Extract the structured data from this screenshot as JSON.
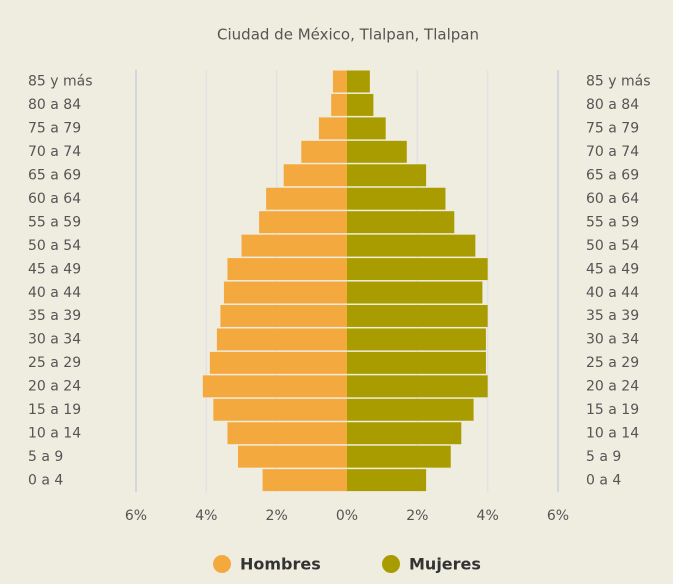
{
  "chart_data": {
    "type": "pyramid",
    "title": "Ciudad de México, Tlalpan, Tlalpan",
    "categories": [
      "85 y más",
      "80 a 84",
      "75 a 79",
      "70 a 74",
      "65 a 69",
      "60 a 64",
      "55 a 59",
      "50 a 54",
      "45 a 49",
      "40 a 44",
      "35 a 39",
      "30 a 34",
      "25 a 29",
      "20 a 24",
      "15 a 19",
      "10 a 14",
      "5 a 9",
      "0 a 4"
    ],
    "series": [
      {
        "name": "Hombres",
        "color": "#f4a93f",
        "values": [
          -0.4,
          -0.45,
          -0.8,
          -1.3,
          -1.8,
          -2.3,
          -2.5,
          -3.0,
          -3.4,
          -3.5,
          -3.6,
          -3.7,
          -3.9,
          -4.1,
          -3.8,
          -3.4,
          -3.1,
          -2.4
        ]
      },
      {
        "name": "Mujeres",
        "color": "#a99c00",
        "values": [
          0.65,
          0.75,
          1.1,
          1.7,
          2.25,
          2.8,
          3.05,
          3.65,
          4.0,
          3.85,
          4.0,
          3.95,
          3.95,
          4.0,
          3.6,
          3.25,
          2.95,
          2.25
        ]
      }
    ],
    "xlim": [
      -6,
      6
    ],
    "xticks": [
      {
        "value": -6,
        "label": "6%"
      },
      {
        "value": -4,
        "label": "4%"
      },
      {
        "value": -2,
        "label": "2%"
      },
      {
        "value": 0,
        "label": "0%"
      },
      {
        "value": 2,
        "label": "2%"
      },
      {
        "value": 4,
        "label": "4%"
      },
      {
        "value": 6,
        "label": "6%"
      }
    ],
    "grid": true
  }
}
